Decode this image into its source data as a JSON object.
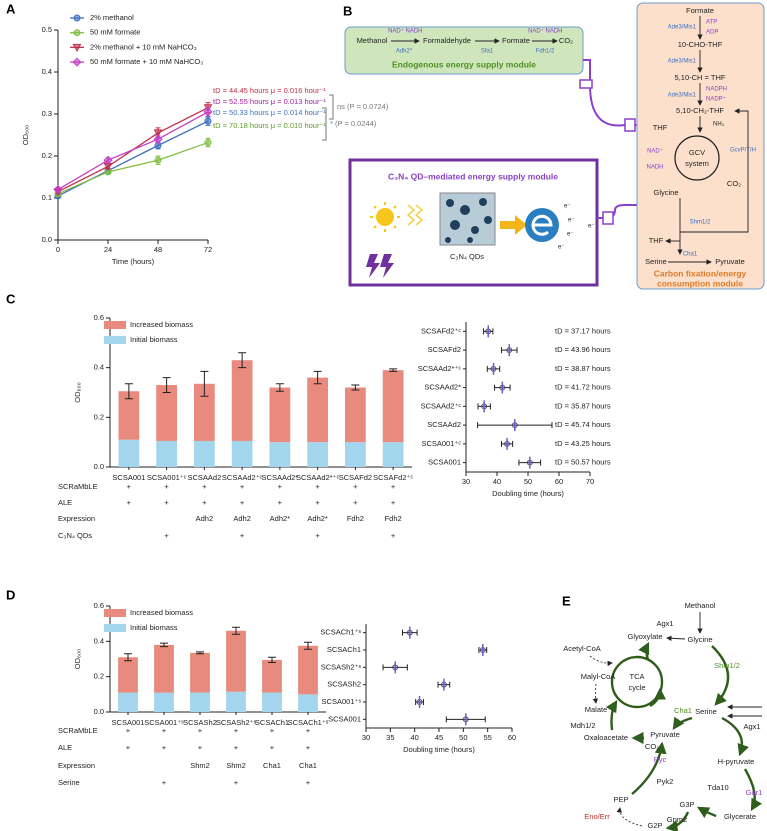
{
  "panel_labels": [
    "A",
    "B",
    "C",
    "D",
    "E"
  ],
  "chart_data": [
    {
      "type": "line",
      "xlabel": "Time (hours)",
      "ylabel": "OD₆₀₀",
      "x": [
        0,
        24,
        48,
        72
      ],
      "xlim": [
        0,
        72
      ],
      "xticks": [
        0,
        24,
        48,
        72
      ],
      "ylim": [
        0,
        0.5
      ],
      "yticks": [
        {
          "value": 0,
          "label": "0.0"
        },
        0.1,
        0.2,
        0.3,
        0.4,
        0.5
      ],
      "legend": "upper left",
      "series": [
        {
          "name": "2% methanol",
          "color": "#3f6fc1",
          "marker": "circle",
          "values": [
            0.105,
            0.165,
            0.225,
            0.283
          ],
          "errors": [
            0.004,
            0.005,
            0.008,
            0.01
          ]
        },
        {
          "name": "50 mM formate",
          "color": "#7fbf3f",
          "marker": "circle",
          "values": [
            0.11,
            0.162,
            0.19,
            0.232
          ],
          "errors": [
            0.004,
            0.005,
            0.01,
            0.01
          ]
        },
        {
          "name": "2% methanol + 10 mM NaHCO₃",
          "color": "#c0304a",
          "marker": "triangle",
          "values": [
            0.115,
            0.175,
            0.255,
            0.315
          ],
          "errors": [
            0.004,
            0.006,
            0.012,
            0.012
          ]
        },
        {
          "name": "50 mM formate + 10 mM NaHCO₃",
          "color": "#c23fc6",
          "marker": "diamond",
          "values": [
            0.12,
            0.19,
            0.24,
            0.305
          ],
          "errors": [
            0.004,
            0.005,
            0.008,
            0.01
          ]
        }
      ],
      "annotations": [
        {
          "text": "tD = 44.45 hours μ = 0.016 hour⁻¹",
          "color": "#c0304a"
        },
        {
          "text": "tD = 52.55 hours μ = 0.013 hour⁻¹",
          "color": "#a0209f"
        },
        {
          "text": "tD = 50.33 hours μ = 0.014 hour⁻¹",
          "color": "#3f6fc1"
        },
        {
          "text": "tD = 70.18 hours μ = 0.010 hour⁻¹",
          "color": "#5a9a2a"
        }
      ],
      "comparisons": [
        "ns (P = 0.0724)",
        "* (P = 0.0244)"
      ]
    },
    {
      "type": "bar",
      "ylabel": "OD₆₀₀",
      "stacked": true,
      "legend": "upper left",
      "categories": [
        "SCSA001",
        "SCSA001⁺ᶜ",
        "SCSAAd2",
        "SCSAAd2⁺ᶜ",
        "SCSAAd2*",
        "SCSAAd2*⁺ᶜ",
        "SCSAFd2",
        "SCSAFd2⁺ᶜ"
      ],
      "ylim": [
        0,
        0.6
      ],
      "yticks": [
        {
          "value": 0,
          "label": "0.0"
        },
        0.2,
        0.4,
        0.6
      ],
      "series": [
        {
          "name": "Initial biomass",
          "color": "#a3d5ec",
          "values": [
            0.11,
            0.105,
            0.105,
            0.105,
            0.1,
            0.1,
            0.1,
            0.1
          ]
        },
        {
          "name": "Increased biomass",
          "color": "#e88a7d",
          "values": [
            0.195,
            0.225,
            0.23,
            0.325,
            0.22,
            0.26,
            0.22,
            0.29
          ],
          "errors": [
            0.03,
            0.03,
            0.05,
            0.03,
            0.015,
            0.025,
            0.01,
            0.005
          ]
        }
      ],
      "table": [
        {
          "label": "SCRaMbLE",
          "values": [
            "+",
            "+",
            "+",
            "+",
            "+",
            "+",
            "+",
            "+"
          ]
        },
        {
          "label": "ALE",
          "values": [
            "+",
            "+",
            "+",
            "+",
            "+",
            "+",
            "+",
            "+"
          ]
        },
        {
          "label": "Expression",
          "values": [
            null,
            null,
            "Adh2",
            "Adh2",
            "Adh2*",
            "Adh2*",
            "Fdh2",
            "Fdh2"
          ]
        },
        {
          "label": "C₃N₄ QDs",
          "values": [
            null,
            "+",
            null,
            "+",
            null,
            "+",
            null,
            "+"
          ]
        }
      ]
    },
    {
      "type": "dot",
      "xlabel": "Doubling time (hours)",
      "color": "#6b5fc7",
      "categories": [
        "SCSAFd2⁺ᶜ",
        "SCSAFd2",
        "SCSAAd2*⁺ᶜ",
        "SCSAAd2*",
        "SCSAAd2⁺ᶜ",
        "SCSAAd2",
        "SCSA001⁺ᶜ",
        "SCSA001"
      ],
      "values": [
        37.17,
        43.96,
        38.87,
        41.72,
        35.87,
        45.74,
        43.25,
        50.57
      ],
      "value_labels": [
        "tD = 37.17 hours",
        "tD = 43.96 hours",
        "tD = 38.87 hours",
        "tD = 41.72 hours",
        "tD = 35.87 hours",
        "tD = 45.74 hours",
        "tD = 43.25 hours",
        "tD = 50.57 hours"
      ],
      "errors": [
        1.5,
        2.5,
        2,
        2.5,
        2,
        12,
        1.8,
        3.5
      ],
      "xlim": [
        30,
        70
      ],
      "xticks": [
        30,
        40,
        50,
        60,
        70
      ]
    },
    {
      "type": "bar",
      "ylabel": "OD₆₀₀",
      "stacked": true,
      "legend": "upper left",
      "categories": [
        "SCSA001",
        "SCSA001⁺ˢ",
        "SCSASh2",
        "SCSASh2⁺ˢ",
        "SCSACh1",
        "SCSACh1⁺ˢ"
      ],
      "ylim": [
        0,
        0.6
      ],
      "yticks": [
        {
          "value": 0,
          "label": "0.0"
        },
        0.2,
        0.4,
        0.6
      ],
      "series": [
        {
          "name": "Initial biomass",
          "color": "#a3d5ec",
          "values": [
            0.11,
            0.11,
            0.11,
            0.115,
            0.11,
            0.1
          ]
        },
        {
          "name": "Increased biomass",
          "color": "#e88a7d",
          "values": [
            0.2,
            0.27,
            0.225,
            0.345,
            0.185,
            0.275
          ],
          "errors": [
            0.02,
            0.01,
            0.005,
            0.02,
            0.015,
            0.02
          ]
        }
      ],
      "table": [
        {
          "label": "SCRaMbLE",
          "values": [
            "+",
            "+",
            "+",
            "+",
            "+",
            "+"
          ]
        },
        {
          "label": "ALE",
          "values": [
            "+",
            "+",
            "+",
            "+",
            "+",
            "+"
          ]
        },
        {
          "label": "Expression",
          "values": [
            null,
            null,
            "Shm2",
            "Shm2",
            "Cha1",
            "Cha1"
          ]
        },
        {
          "label": "Serine",
          "values": [
            null,
            "+",
            null,
            "+",
            null,
            "+"
          ]
        }
      ]
    },
    {
      "type": "dot",
      "xlabel": "Doubling time (hours)",
      "color": "#6b5fc7",
      "categories": [
        "SCSACh1⁺ˢ",
        "SCSACh1",
        "SCSASh2⁺ˢ",
        "SCSASh2",
        "SCSA001⁺ˢ",
        "SCSA001"
      ],
      "values": [
        39,
        54,
        36,
        46,
        41,
        50.5
      ],
      "errors": [
        1.5,
        0.8,
        2.5,
        1.2,
        0.8,
        4
      ],
      "xlim": [
        30,
        60
      ],
      "xticks": [
        30,
        35,
        40,
        45,
        50,
        55,
        60
      ]
    }
  ],
  "panel_b": {
    "endogenous": {
      "title": "Endogenous energy supply module",
      "metabolites": [
        "Methanol",
        "Formaldehyde",
        "Formate",
        "CO₂"
      ],
      "enzymes": [
        "Adh2*",
        "Sfa1",
        "Fdh1/2"
      ],
      "cofactors": [
        "NAD⁺",
        "NADH",
        "NAD⁺",
        "NADH"
      ]
    },
    "qd": {
      "title": "C₃N₄ QD–mediated energy supply module",
      "label": "C₃N₄ QDs",
      "electrons": [
        "e⁻",
        "e⁻",
        "e⁻",
        "e⁻",
        "e⁻"
      ]
    },
    "carbon": {
      "title": [
        "Carbon fixation/energy",
        "consumption module"
      ],
      "metabolites": [
        "Formate",
        "10-CHO-THF",
        "5,10-CH = THF",
        "5,10-CH₂-THF",
        "THF",
        "Glycine",
        "THF",
        "Serine",
        "Pyruvate"
      ],
      "enzymes": [
        "Ade3/Mis1",
        "Ade3/Mis1",
        "Ade3/Mis1",
        "GcvP/T/H",
        "Shm1/2",
        "Cha1"
      ],
      "cofactors": [
        "ATP",
        "ADP",
        "NADPH",
        "NADP⁺",
        "NH₃",
        "NAD⁺",
        "NADH",
        "CO₂"
      ],
      "gcv": [
        "GCV",
        "system"
      ]
    }
  },
  "panel_e": {
    "metabolites": [
      "Methanol",
      "Glycine",
      "Glyoxylate",
      "Acetyl-CoA",
      "Malyl-CoA",
      "Malate",
      "Oxaloacetate",
      "Pyruvate",
      "Serine",
      "H-pyruvate",
      "CO₂",
      "PEP",
      "G3P",
      "Glycerate",
      "G2P"
    ],
    "cycle": [
      "TCA",
      "cycle"
    ],
    "enzymes": [
      "Agx1",
      "Shm1/2",
      "Cha1",
      "Mdh1/2",
      "Agx1",
      "Pyc",
      "Pyk2",
      "Tda10",
      "Gor1",
      "Gpm2",
      "Eno/Err"
    ]
  }
}
